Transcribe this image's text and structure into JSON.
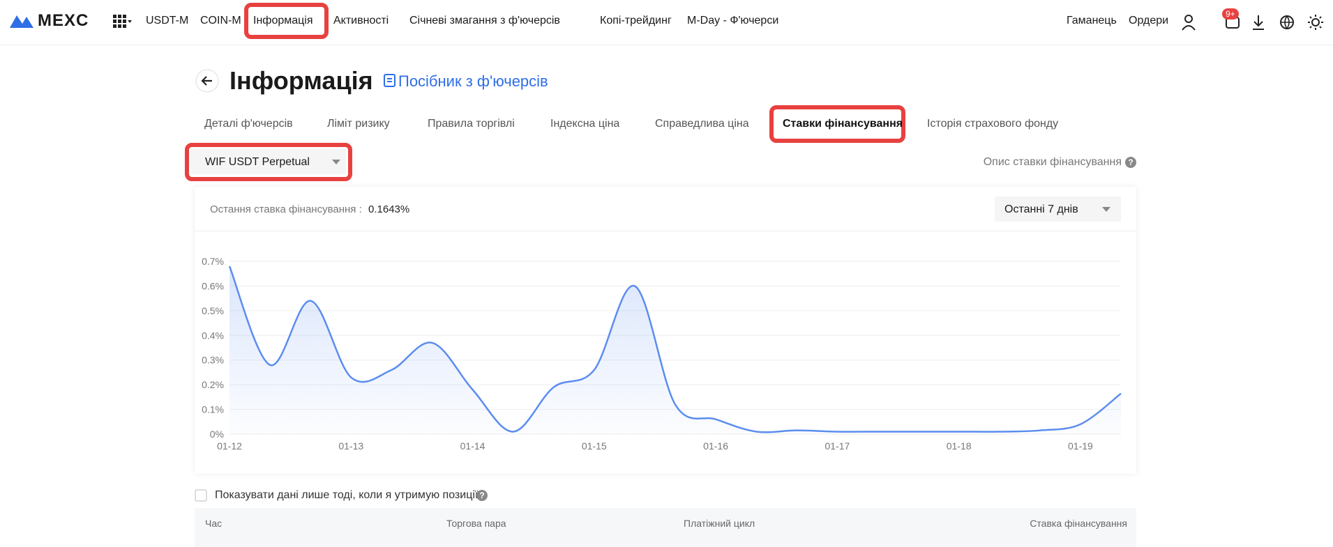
{
  "nav": {
    "logo": "MEXC",
    "items": [
      "USDT-M",
      "COIN-M",
      "Інформація",
      "Активності",
      "Січневі змагання з ф'ючерсів",
      "Копі-трейдинг",
      "M-Day - Ф'ючерси"
    ],
    "right": [
      "Гаманець",
      "Ордери"
    ],
    "badge": "9+"
  },
  "header": {
    "title": "Інформація",
    "guide_link": "Посібник з ф'ючерсів"
  },
  "tabs": [
    "Деталі ф'ючерсів",
    "Ліміт ризику",
    "Правила торгівлі",
    "Індексна ціна",
    "Справедлива ціна",
    "Ставки фінансування",
    "Історія страхового фонду"
  ],
  "contract_select": "WIF USDT Perpetual",
  "funding_description_link": "Опис ставки фінансування",
  "chart_card": {
    "latest_label": "Остання ставка фінансування :",
    "latest_value": "0.1643%",
    "period_select": "Останні 7 днів"
  },
  "chart_data": {
    "type": "line",
    "categories": [
      "01-12",
      null,
      null,
      "01-13",
      null,
      null,
      "01-14",
      null,
      null,
      "01-15",
      null,
      null,
      "01-16",
      null,
      null,
      "01-17",
      null,
      null,
      "01-18",
      null,
      null,
      "01-19",
      null
    ],
    "values": [
      0.68,
      0.28,
      0.54,
      0.23,
      0.26,
      0.37,
      0.18,
      0.01,
      0.19,
      0.26,
      0.6,
      0.12,
      0.06,
      0.01,
      0.015,
      0.01,
      0.01,
      0.01,
      0.01,
      0.01,
      0.015,
      0.04,
      0.1643
    ],
    "color": "#5b8def",
    "area": true,
    "ylim": [
      0,
      0.7
    ],
    "yticks": [
      {
        "value": 0,
        "label": "0%"
      },
      {
        "value": 0.1,
        "label": "0.1%"
      },
      {
        "value": 0.2,
        "label": "0.2%"
      },
      {
        "value": 0.3,
        "label": "0.3%"
      },
      {
        "value": 0.4,
        "label": "0.4%"
      },
      {
        "value": 0.5,
        "label": "0.5%"
      },
      {
        "value": 0.6,
        "label": "0.6%"
      },
      {
        "value": 0.7,
        "label": "0.7%"
      }
    ],
    "grid": true
  },
  "position_filter": "Показувати дані лише тоді, коли я утримую позиції",
  "table": {
    "columns": [
      "Час",
      "Торгова пара",
      "Платіжний цикл",
      "Ставка фінансування"
    ]
  }
}
